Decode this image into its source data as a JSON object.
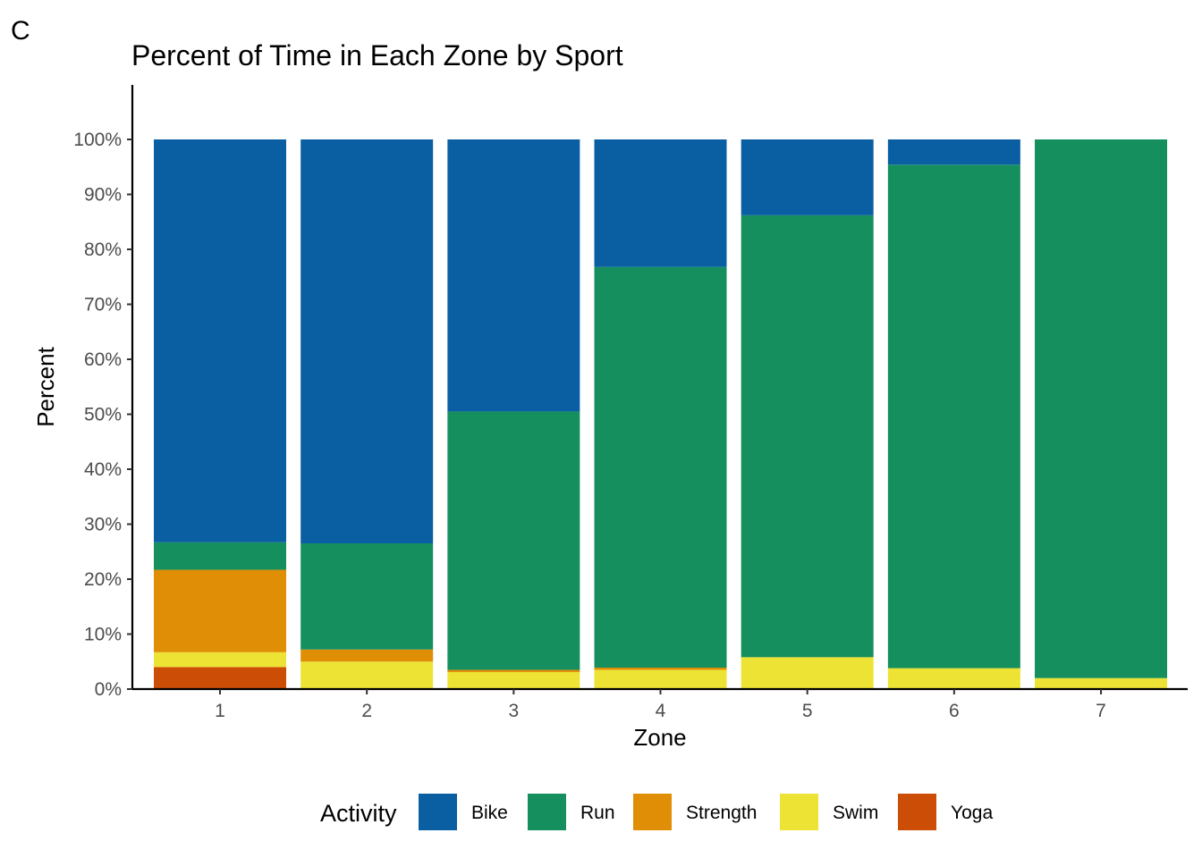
{
  "panel_label": "C",
  "chart_data": {
    "type": "bar",
    "stacked": true,
    "title": "Percent of Time in Each Zone by Sport",
    "xlabel": "Zone",
    "ylabel": "Percent",
    "categories": [
      "1",
      "2",
      "3",
      "4",
      "5",
      "6",
      "7"
    ],
    "ylim": [
      0,
      110
    ],
    "yticks": [
      0,
      10,
      20,
      30,
      40,
      50,
      60,
      70,
      80,
      90,
      100
    ],
    "ytick_labels": [
      "0%",
      "10%",
      "20%",
      "30%",
      "40%",
      "50%",
      "60%",
      "70%",
      "80%",
      "90%",
      "100%"
    ],
    "grid": false,
    "legend_title": "Activity",
    "legend_position": "bottom",
    "stack_order_bottom_to_top": [
      "Yoga",
      "Swim",
      "Strength",
      "Run",
      "Bike"
    ],
    "series": [
      {
        "name": "Bike",
        "color": "#0a5fa3",
        "values": [
          73.3,
          73.5,
          49.5,
          23.2,
          13.8,
          4.6,
          0
        ]
      },
      {
        "name": "Run",
        "color": "#168f5f",
        "values": [
          5.0,
          19.3,
          47.0,
          72.9,
          80.4,
          91.6,
          98.0
        ]
      },
      {
        "name": "Strength",
        "color": "#e08e06",
        "values": [
          15.0,
          2.2,
          0.4,
          0.4,
          0,
          0,
          0
        ]
      },
      {
        "name": "Swim",
        "color": "#ede334",
        "values": [
          2.7,
          5.0,
          3.1,
          3.5,
          5.8,
          3.8,
          2.0
        ]
      },
      {
        "name": "Yoga",
        "color": "#cc4d06",
        "values": [
          4.0,
          0,
          0,
          0,
          0,
          0,
          0
        ]
      }
    ]
  }
}
